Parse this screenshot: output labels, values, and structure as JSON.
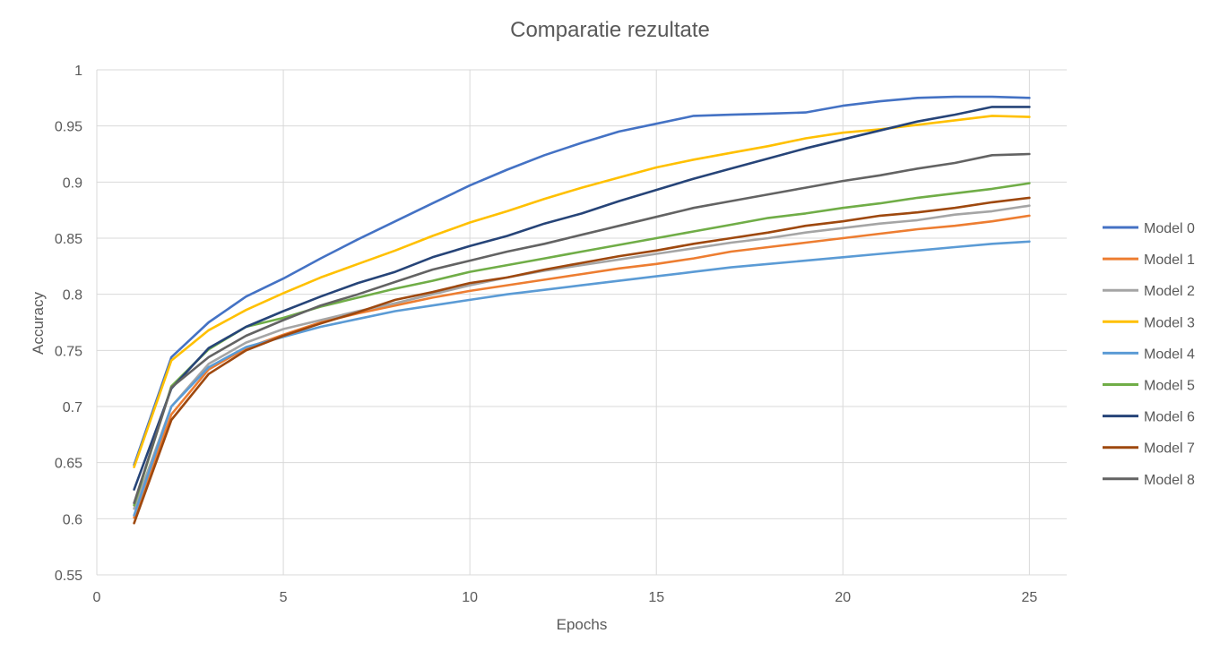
{
  "chart_data": {
    "type": "line",
    "title": "Comparatie rezultate",
    "xlabel": "Epochs",
    "ylabel": "Accuracy",
    "xlim": [
      0,
      26
    ],
    "ylim": [
      0.55,
      1
    ],
    "xticks": [
      0,
      5,
      10,
      15,
      20,
      25
    ],
    "yticks": [
      0.55,
      0.6,
      0.65,
      0.7,
      0.75,
      0.8,
      0.85,
      0.9,
      0.95,
      1
    ],
    "grid": true,
    "legend_position": "right",
    "x": [
      1,
      2,
      3,
      4,
      5,
      6,
      7,
      8,
      9,
      10,
      11,
      12,
      13,
      14,
      15,
      16,
      17,
      18,
      19,
      20,
      21,
      22,
      23,
      24,
      25
    ],
    "series": [
      {
        "name": "Model 0",
        "color": "#4472C4",
        "values": [
          0.648,
          0.744,
          0.775,
          0.798,
          0.814,
          0.832,
          0.849,
          0.865,
          0.881,
          0.897,
          0.911,
          0.924,
          0.935,
          0.945,
          0.952,
          0.959,
          0.96,
          0.961,
          0.962,
          0.968,
          0.972,
          0.975,
          0.976,
          0.976,
          0.975
        ]
      },
      {
        "name": "Model 1",
        "color": "#ED7D31",
        "values": [
          0.601,
          0.693,
          0.733,
          0.752,
          0.764,
          0.775,
          0.783,
          0.79,
          0.797,
          0.803,
          0.808,
          0.813,
          0.818,
          0.823,
          0.827,
          0.832,
          0.838,
          0.842,
          0.846,
          0.85,
          0.854,
          0.858,
          0.861,
          0.865,
          0.87
        ]
      },
      {
        "name": "Model 2",
        "color": "#A5A5A5",
        "values": [
          0.609,
          0.7,
          0.738,
          0.757,
          0.769,
          0.777,
          0.785,
          0.792,
          0.8,
          0.808,
          0.815,
          0.821,
          0.826,
          0.831,
          0.836,
          0.841,
          0.846,
          0.85,
          0.855,
          0.859,
          0.863,
          0.866,
          0.871,
          0.874,
          0.879
        ]
      },
      {
        "name": "Model 3",
        "color": "#FFC000",
        "values": [
          0.646,
          0.741,
          0.768,
          0.786,
          0.801,
          0.815,
          0.827,
          0.839,
          0.852,
          0.864,
          0.874,
          0.885,
          0.895,
          0.904,
          0.913,
          0.92,
          0.926,
          0.932,
          0.939,
          0.944,
          0.947,
          0.951,
          0.955,
          0.959,
          0.958
        ]
      },
      {
        "name": "Model 4",
        "color": "#5B9BD5",
        "values": [
          0.603,
          0.7,
          0.735,
          0.753,
          0.762,
          0.771,
          0.778,
          0.785,
          0.79,
          0.795,
          0.8,
          0.804,
          0.808,
          0.812,
          0.816,
          0.82,
          0.824,
          0.827,
          0.83,
          0.833,
          0.836,
          0.839,
          0.842,
          0.845,
          0.847
        ]
      },
      {
        "name": "Model 5",
        "color": "#70AD47",
        "values": [
          0.612,
          0.718,
          0.751,
          0.771,
          0.779,
          0.789,
          0.797,
          0.805,
          0.812,
          0.82,
          0.826,
          0.832,
          0.838,
          0.844,
          0.85,
          0.856,
          0.862,
          0.868,
          0.872,
          0.877,
          0.881,
          0.886,
          0.89,
          0.894,
          0.899
        ]
      },
      {
        "name": "Model 6",
        "color": "#264478",
        "values": [
          0.626,
          0.716,
          0.752,
          0.771,
          0.785,
          0.798,
          0.81,
          0.82,
          0.833,
          0.843,
          0.852,
          0.863,
          0.872,
          0.883,
          0.893,
          0.903,
          0.912,
          0.921,
          0.93,
          0.938,
          0.946,
          0.954,
          0.96,
          0.967,
          0.967
        ]
      },
      {
        "name": "Model 7",
        "color": "#9E480E",
        "values": [
          0.596,
          0.688,
          0.729,
          0.75,
          0.763,
          0.774,
          0.784,
          0.795,
          0.802,
          0.81,
          0.815,
          0.822,
          0.828,
          0.834,
          0.839,
          0.845,
          0.85,
          0.855,
          0.861,
          0.865,
          0.87,
          0.873,
          0.877,
          0.882,
          0.886
        ]
      },
      {
        "name": "Model 8",
        "color": "#636363",
        "values": [
          0.614,
          0.717,
          0.744,
          0.763,
          0.777,
          0.79,
          0.8,
          0.811,
          0.822,
          0.83,
          0.838,
          0.845,
          0.853,
          0.861,
          0.869,
          0.877,
          0.883,
          0.889,
          0.895,
          0.901,
          0.906,
          0.912,
          0.917,
          0.924,
          0.925
        ]
      }
    ]
  }
}
